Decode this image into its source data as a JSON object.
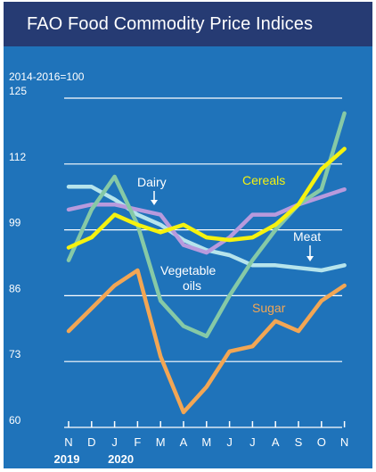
{
  "chart_data": {
    "type": "line",
    "title": "FAO Food Commodity Price Indices",
    "subtitle": "2014-2016=100",
    "ylim": [
      60,
      125
    ],
    "yticks": [
      60,
      73,
      86,
      99,
      112,
      125
    ],
    "ytick_labels": [
      "60",
      "73",
      "86",
      "99",
      "112",
      "125"
    ],
    "categories": [
      "N",
      "D",
      "J",
      "F",
      "M",
      "A",
      "M",
      "J",
      "J",
      "A",
      "S",
      "O",
      "N"
    ],
    "year_labels": [
      "2019",
      "2020"
    ],
    "grid": true,
    "series": [
      {
        "name": "Cereals",
        "color": "#f5f20f",
        "label_color": "#f5f20f",
        "values": [
          95.5,
          97.5,
          102,
          100,
          98.5,
          100,
          97.5,
          97,
          97.5,
          100,
          104,
          111,
          115
        ]
      },
      {
        "name": "Dairy",
        "color": "#b89add",
        "label_color": "#ffffff",
        "values": [
          103,
          104,
          104,
          103,
          102,
          96,
          94.5,
          97.5,
          102,
          102,
          104,
          105.5,
          107
        ]
      },
      {
        "name": "Meat",
        "color": "#b6e4ec",
        "label_color": "#ffffff",
        "values": [
          107.5,
          107.5,
          105,
          102,
          100,
          97,
          95,
          94,
          92,
          92,
          91.5,
          91,
          92
        ]
      },
      {
        "name": "Vegetable oils",
        "label_lines": [
          "Vegetable",
          "oils"
        ],
        "color": "#86c9a6",
        "label_color": "#ffffff",
        "values": [
          93,
          103,
          109.5,
          100,
          85,
          80,
          78,
          86,
          93,
          99,
          104,
          107,
          122
        ]
      },
      {
        "name": "Sugar",
        "color": "#f2a654",
        "label_color": "#f2a654",
        "values": [
          79,
          83.5,
          88,
          91,
          74,
          63,
          68,
          75,
          76,
          81,
          79,
          85,
          88
        ]
      }
    ]
  }
}
